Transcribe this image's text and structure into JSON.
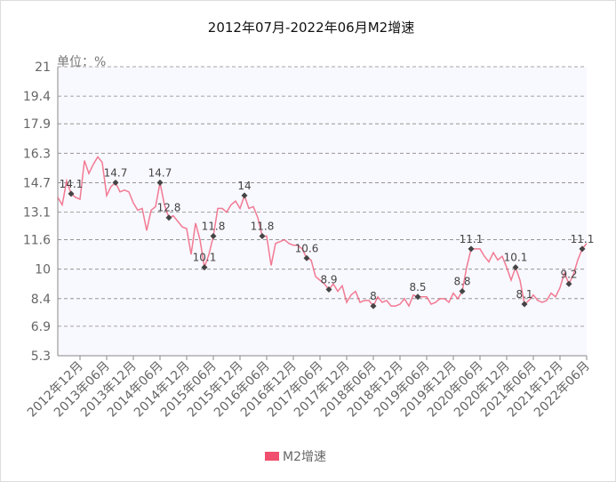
{
  "chart_data": {
    "type": "line",
    "title": "2012年07月-2022年06月M2增速",
    "y_unit": "单位：%",
    "categories": [
      null,
      null,
      null,
      null,
      null,
      "2012年12月",
      null,
      null,
      null,
      null,
      null,
      "2013年06月",
      null,
      null,
      null,
      null,
      null,
      "2013年12月",
      null,
      null,
      null,
      null,
      null,
      "2014年06月",
      null,
      null,
      null,
      null,
      null,
      "2014年12月",
      null,
      null,
      null,
      null,
      null,
      "2015年06月",
      null,
      null,
      null,
      null,
      null,
      "2015年12月",
      null,
      null,
      null,
      null,
      null,
      "2016年06月",
      null,
      null,
      null,
      null,
      null,
      "2016年12月",
      null,
      null,
      null,
      null,
      null,
      "2017年06月",
      null,
      null,
      null,
      null,
      null,
      "2017年12月",
      null,
      null,
      null,
      null,
      null,
      "2018年06月",
      null,
      null,
      null,
      null,
      null,
      "2018年12月",
      null,
      null,
      null,
      null,
      null,
      "2019年06月",
      null,
      null,
      null,
      null,
      null,
      "2019年12月",
      null,
      null,
      null,
      null,
      null,
      "2020年06月",
      null,
      null,
      null,
      null,
      null,
      "2020年12月",
      null,
      null,
      null,
      null,
      null,
      "2021年06月",
      null,
      null,
      null,
      null,
      null,
      "2021年12月",
      null,
      null,
      null,
      null,
      null,
      "2022年06月"
    ],
    "series": [
      {
        "name": "M2增速",
        "color": "#f0506e",
        "values": [
          13.9,
          13.5,
          14.8,
          14.1,
          13.9,
          13.8,
          15.9,
          15.2,
          15.7,
          16.1,
          15.8,
          14.0,
          14.5,
          14.7,
          14.2,
          14.3,
          14.2,
          13.6,
          13.2,
          13.3,
          12.1,
          13.2,
          13.4,
          14.7,
          13.5,
          12.8,
          12.9,
          12.6,
          12.3,
          12.2,
          10.8,
          12.5,
          11.6,
          10.1,
          10.8,
          11.8,
          13.3,
          13.3,
          13.1,
          13.5,
          13.7,
          13.3,
          14.0,
          13.3,
          13.4,
          12.8,
          11.8,
          11.8,
          10.2,
          11.4,
          11.5,
          11.6,
          11.4,
          11.3,
          11.3,
          11.1,
          10.6,
          10.5,
          9.6,
          9.4,
          9.2,
          8.9,
          9.2,
          8.8,
          9.1,
          8.2,
          8.6,
          8.8,
          8.2,
          8.3,
          8.3,
          8.0,
          8.5,
          8.2,
          8.3,
          8.0,
          8.0,
          8.1,
          8.4,
          8.0,
          8.6,
          8.5,
          8.5,
          8.5,
          8.1,
          8.2,
          8.4,
          8.4,
          8.2,
          8.7,
          8.4,
          8.8,
          10.1,
          11.1,
          11.1,
          11.1,
          10.7,
          10.4,
          10.9,
          10.5,
          10.7,
          10.1,
          9.4,
          10.1,
          9.4,
          8.1,
          8.3,
          8.6,
          8.3,
          8.2,
          8.3,
          8.7,
          8.5,
          9.0,
          9.8,
          9.2,
          9.7,
          10.5,
          11.1,
          11.4
        ],
        "value_labels": [
          null,
          null,
          null,
          "14.1",
          null,
          null,
          null,
          null,
          null,
          null,
          null,
          null,
          null,
          "14.7",
          null,
          null,
          null,
          null,
          null,
          null,
          null,
          null,
          null,
          "14.7",
          null,
          "12.8",
          null,
          null,
          null,
          null,
          null,
          null,
          null,
          "10.1",
          null,
          "11.8",
          null,
          null,
          null,
          null,
          null,
          null,
          "14",
          null,
          null,
          null,
          "11.8",
          null,
          null,
          null,
          null,
          null,
          null,
          null,
          null,
          null,
          "10.6",
          null,
          null,
          null,
          null,
          "8.9",
          null,
          null,
          null,
          null,
          null,
          null,
          null,
          null,
          null,
          "8",
          null,
          null,
          null,
          null,
          null,
          null,
          null,
          null,
          null,
          "8.5",
          null,
          null,
          null,
          null,
          null,
          null,
          null,
          null,
          null,
          "8.8",
          null,
          "11.1",
          null,
          null,
          null,
          null,
          null,
          null,
          null,
          null,
          null,
          "10.1",
          null,
          "8.1",
          null,
          null,
          null,
          null,
          null,
          null,
          null,
          null,
          null,
          "9.2",
          null,
          null,
          "11.1",
          null
        ]
      }
    ],
    "ylim": [
      5.3,
      21
    ],
    "yticks": [
      5.3,
      6.9,
      8.4,
      10,
      11.6,
      13.1,
      14.7,
      16.3,
      17.9,
      19.4,
      21
    ],
    "grid": true,
    "legend": "bottom"
  }
}
